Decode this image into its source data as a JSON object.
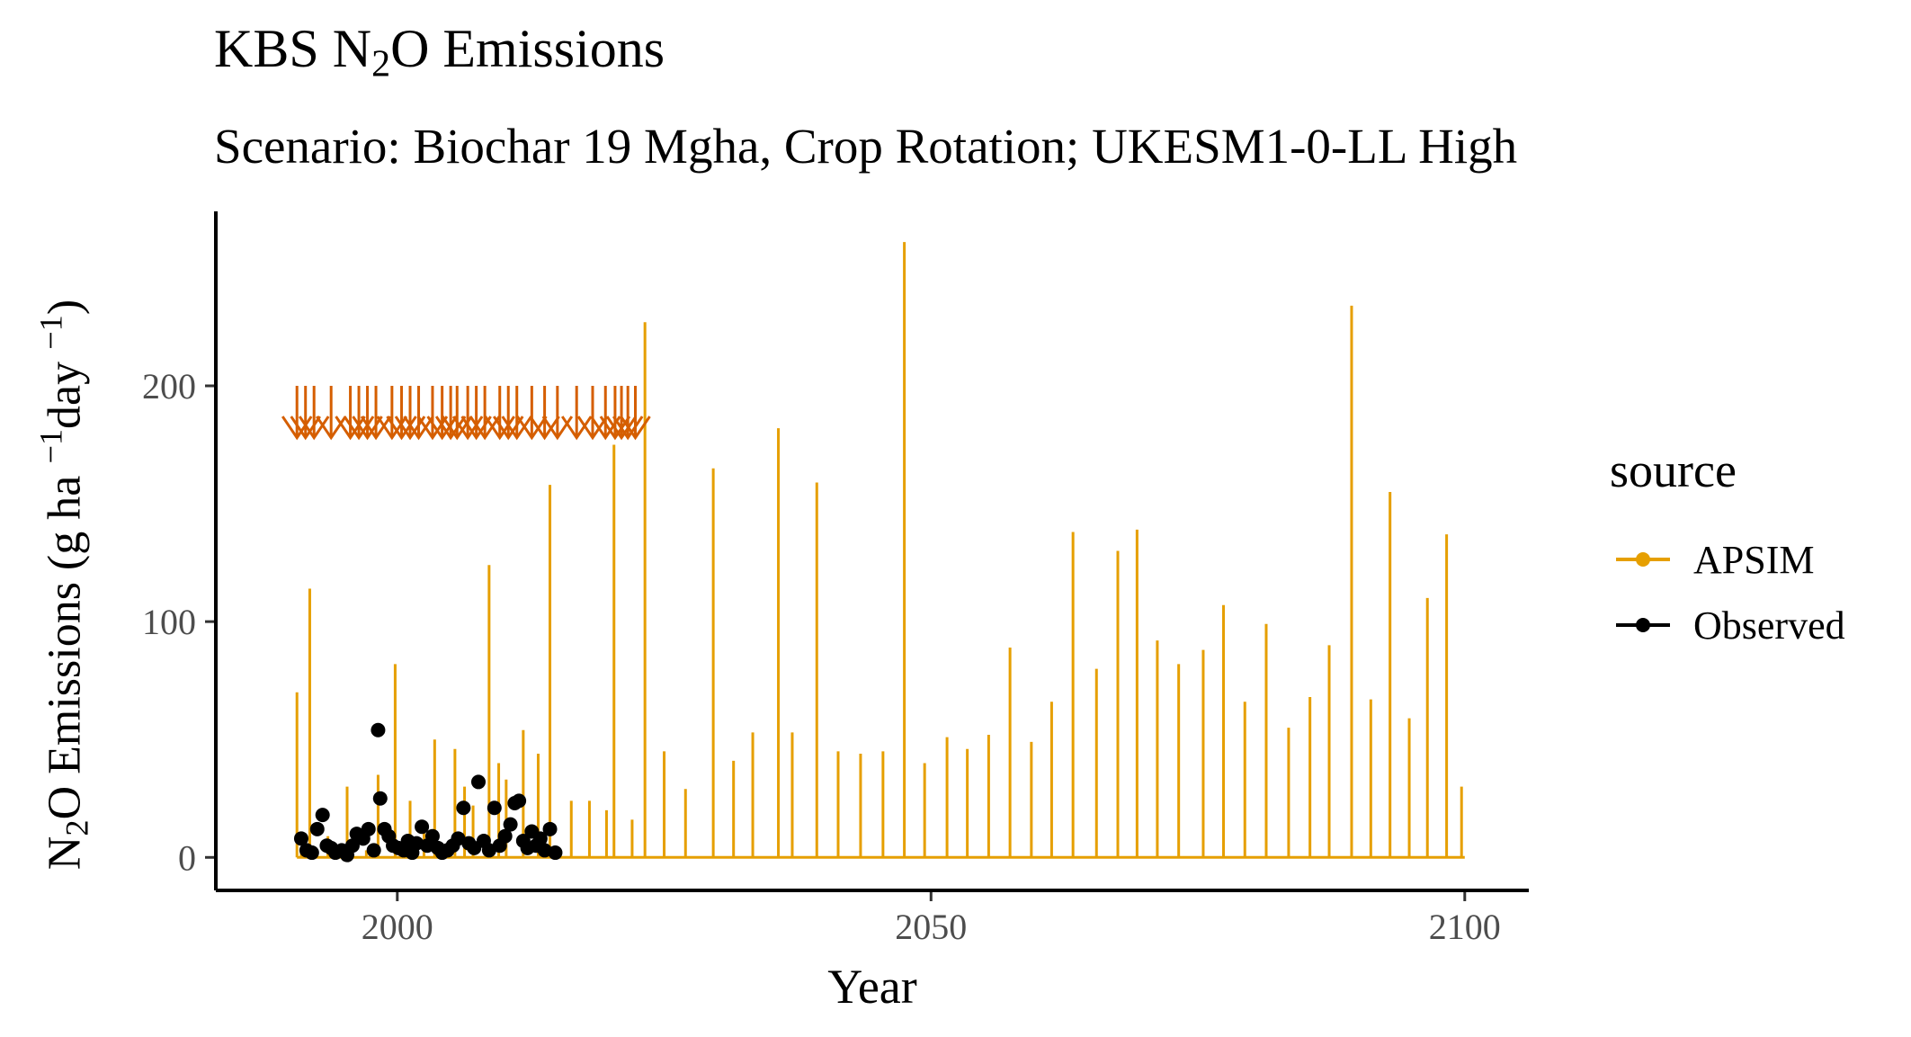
{
  "title_main": "KBS N",
  "title_sub": "2",
  "title_end": "O Emissions",
  "subtitle": "Scenario: Biochar 19 Mgha, Crop Rotation; UKESM1-0-LL High",
  "ylabel_parts": {
    "a": "N",
    "b": "2",
    "c": "O Emissions (g ha ",
    "d": "−1",
    "e": "day ",
    "f": "−1",
    "g": ")"
  },
  "legend": {
    "title": "source",
    "apsim": "APSIM",
    "observed": "Observed"
  },
  "colors": {
    "apsim": "#E69F00",
    "observed": "#000000",
    "fertilizer_marker": "#D55E00",
    "axis": "#000000"
  },
  "chart_data": {
    "type": "line",
    "xlabel": "Year",
    "xlim": [
      1983,
      2106
    ],
    "ylim": [
      -14,
      274
    ],
    "x_ticks": [
      2000,
      2050,
      2100
    ],
    "y_ticks": [
      0,
      100,
      200
    ],
    "series": [
      {
        "name": "APSIM",
        "kind": "line",
        "x": [
          1990.6,
          1991,
          1991.8,
          1993.5,
          1995.3,
          1997.1,
          1998.2,
          1999.8,
          2001.2,
          2002.5,
          2003.5,
          2005.4,
          2006.3,
          2007.1,
          2008.6,
          2009.5,
          2010.2,
          2011.8,
          2013.2,
          2014.3,
          2016.3,
          2018,
          2019.6,
          2020.3,
          2022,
          2023.2,
          2025,
          2027,
          2029.6,
          2031.5,
          2033.3,
          2035.7,
          2037,
          2039.3,
          2041.3,
          2043.4,
          2045.5,
          2047.5,
          2049.4,
          2051.5,
          2053.4,
          2055.4,
          2057.4,
          2059.4,
          2061.3,
          2063.3,
          2065.5,
          2067.5,
          2069.3,
          2071.2,
          2073.2,
          2075.5,
          2077.4,
          2079.4,
          2081.4,
          2083.5,
          2085.5,
          2087.3,
          2089.4,
          2091.2,
          2093,
          2094.8,
          2096.5,
          2098.3,
          2099.7
        ],
        "y": [
          70,
          3,
          114,
          9,
          30,
          3,
          35,
          82,
          24,
          12,
          50,
          46,
          30,
          22,
          124,
          40,
          33,
          54,
          44,
          158,
          24,
          24,
          20,
          175,
          16,
          227,
          45,
          29,
          165,
          41,
          53,
          182,
          53,
          159,
          45,
          44,
          45,
          261,
          40,
          51,
          46,
          52,
          89,
          49,
          66,
          138,
          80,
          130,
          139,
          92,
          82,
          88,
          107,
          66,
          99,
          55,
          68,
          90,
          234,
          67,
          155,
          59,
          110,
          137,
          30
        ]
      },
      {
        "name": "Observed",
        "kind": "point",
        "x": [
          1991,
          1991.5,
          1992,
          1992.5,
          1993,
          1993.4,
          1993.8,
          1994.2,
          1994.8,
          1995.3,
          1995.8,
          1996.2,
          1996.8,
          1997.3,
          1997.8,
          1998.2,
          1998.4,
          1998.8,
          1999.2,
          1999.6,
          2000.1,
          2000.6,
          2001,
          2001.4,
          2001.8,
          2002.3,
          2002.8,
          2003.3,
          2003.8,
          2004.2,
          2004.7,
          2005.2,
          2005.7,
          2006.2,
          2006.7,
          2007.2,
          2007.6,
          2008.1,
          2008.6,
          2009.1,
          2009.6,
          2010.1,
          2010.6,
          2011,
          2011.4,
          2011.8,
          2012.2,
          2012.6,
          2013,
          2013.4,
          2013.8,
          2014.3,
          2014.8
        ],
        "y": [
          8,
          3,
          2,
          12,
          18,
          5,
          4,
          2,
          3,
          1,
          5,
          10,
          8,
          12,
          3,
          54,
          25,
          12,
          9,
          5,
          4,
          3,
          7,
          2,
          6,
          13,
          5,
          9,
          4,
          2,
          3,
          5,
          8,
          21,
          6,
          4,
          32,
          7,
          3,
          21,
          5,
          9,
          14,
          23,
          24,
          7,
          4,
          11,
          5,
          8,
          3,
          12,
          2
        ]
      }
    ],
    "fertilizer_events_x": [
      1990.6,
      1991.4,
      1992.2,
      1993.8,
      1995.6,
      1996.4,
      1997.2,
      1998,
      1999.5,
      2000.4,
      2001.2,
      2002,
      2003.3,
      2004.2,
      2005,
      2005.6,
      2006.6,
      2007.4,
      2008.2,
      2009.6,
      2010.4,
      2011.2,
      2012.6,
      2013.8,
      2015,
      2016.8,
      2018.3,
      2019.5,
      2020.4,
      2021,
      2021.6,
      2022.3
    ]
  }
}
